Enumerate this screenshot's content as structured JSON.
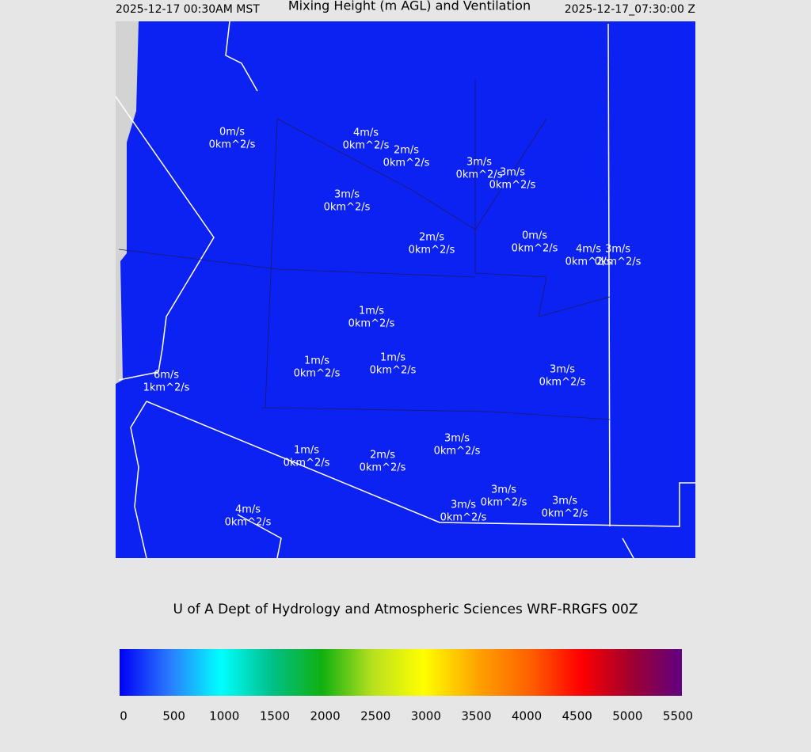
{
  "header": {
    "local_time": "2025-12-17 00:30AM MST",
    "title": "Mixing Height (m AGL) and Ventilation",
    "utc_time": "2025-12-17_07:30:00 Z"
  },
  "labels": [
    {
      "speed": "0m/s",
      "ventilation": "0km^2/s"
    },
    {
      "speed": "4m/s",
      "ventilation": "0km^2/s"
    },
    {
      "speed": "2m/s",
      "ventilation": "0km^2/s"
    },
    {
      "speed": "3m/s",
      "ventilation": "0km^2/s"
    },
    {
      "speed": "3m/s",
      "ventilation": "0km^2/s"
    },
    {
      "speed": "3m/s",
      "ventilation": "0km^2/s"
    },
    {
      "speed": "2m/s",
      "ventilation": "0km^2/s"
    },
    {
      "speed": "0m/s",
      "ventilation": "0km^2/s"
    },
    {
      "speed": "4m/s",
      "ventilation": "0km^2/s"
    },
    {
      "speed": "3m/s",
      "ventilation": "0km^2/s"
    },
    {
      "speed": "1m/s",
      "ventilation": "0km^2/s"
    },
    {
      "speed": "1m/s",
      "ventilation": "0km^2/s"
    },
    {
      "speed": "1m/s",
      "ventilation": "0km^2/s"
    },
    {
      "speed": "6m/s",
      "ventilation": "1km^2/s"
    },
    {
      "speed": "3m/s",
      "ventilation": "0km^2/s"
    },
    {
      "speed": "3m/s",
      "ventilation": "0km^2/s"
    },
    {
      "speed": "1m/s",
      "ventilation": "0km^2/s"
    },
    {
      "speed": "2m/s",
      "ventilation": "0km^2/s"
    },
    {
      "speed": "3m/s",
      "ventilation": "0km^2/s"
    },
    {
      "speed": "3m/s",
      "ventilation": "0km^2/s"
    },
    {
      "speed": "4m/s",
      "ventilation": "0km^2/s"
    },
    {
      "speed": "3m/s",
      "ventilation": "0km^2/s"
    }
  ],
  "footer": "U of A Dept of Hydrology and Atmospheric Sciences WRF-RRGFS 00Z",
  "colorbar": {
    "ticks": [
      0,
      500,
      1000,
      1500,
      2000,
      2500,
      3000,
      3500,
      4000,
      4500,
      5000,
      5500
    ]
  }
}
